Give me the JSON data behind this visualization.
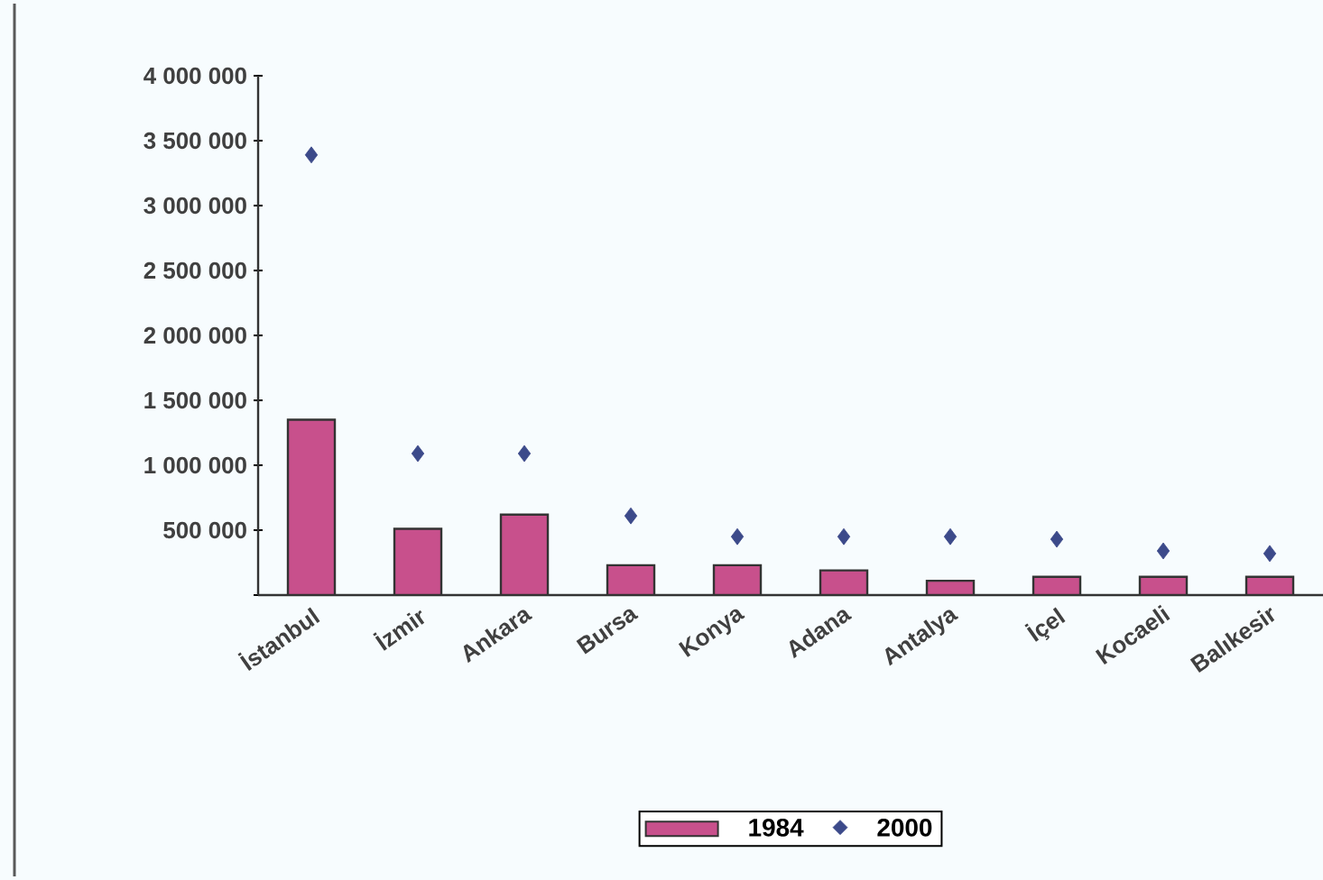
{
  "chart_data": {
    "type": "bar",
    "categories": [
      "İstanbul",
      "İzmir",
      "Ankara",
      "Bursa",
      "Konya",
      "Adana",
      "Antalya",
      "İçel",
      "Kocaeli",
      "Balıkesir"
    ],
    "series": [
      {
        "name": "1984",
        "color": "#c8508c",
        "values": [
          1350000,
          510000,
          620000,
          230000,
          230000,
          190000,
          110000,
          140000,
          140000,
          140000
        ]
      },
      {
        "name": "2000",
        "type": "scatter",
        "color": "#3c4a8a",
        "values": [
          3390000,
          1090000,
          1090000,
          610000,
          450000,
          450000,
          450000,
          430000,
          340000,
          320000
        ]
      }
    ],
    "ylim": [
      0,
      4000000
    ],
    "yticks": [
      {
        "value": 0,
        "label": null
      },
      {
        "value": 500000,
        "label": "500 000"
      },
      {
        "value": 1000000,
        "label": "1 000 000"
      },
      {
        "value": 1500000,
        "label": "1 500 000"
      },
      {
        "value": 2000000,
        "label": "2 000 000"
      },
      {
        "value": 2500000,
        "label": "2 500 000"
      },
      {
        "value": 3000000,
        "label": "3 000 000"
      },
      {
        "value": 3500000,
        "label": "3 500 000"
      },
      {
        "value": 4000000,
        "label": "4 000 000"
      }
    ],
    "marker": "diamond",
    "legend": "bottom"
  }
}
